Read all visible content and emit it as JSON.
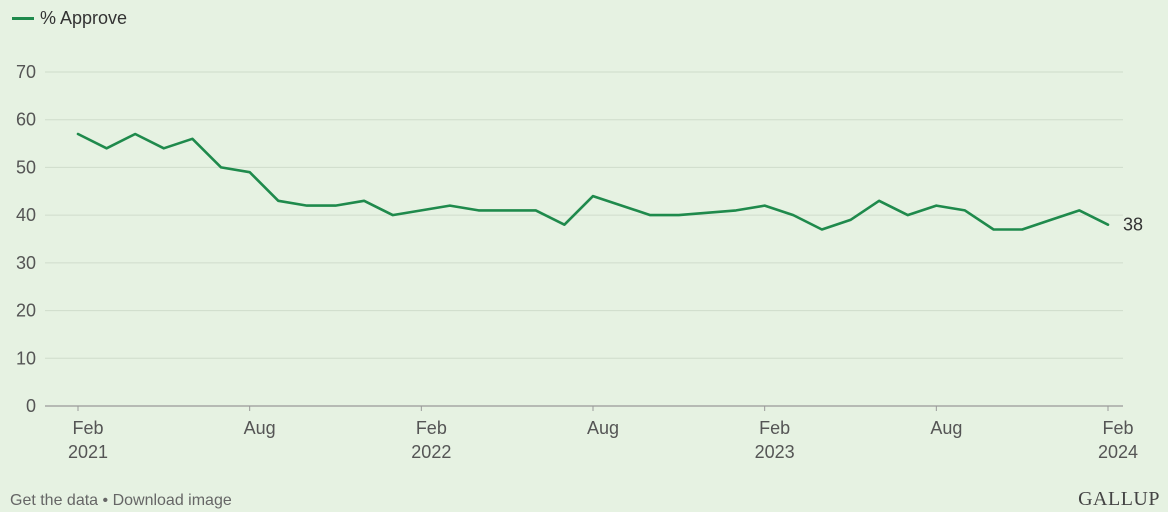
{
  "legend": {
    "label": "% Approve",
    "color": "#1f8a4c"
  },
  "footer": {
    "get_data": "Get the data",
    "separator": " • ",
    "download": "Download image"
  },
  "logo": {
    "text": "GALLUP"
  },
  "chart_data": {
    "type": "line",
    "title": "",
    "xlabel": "",
    "ylabel": "",
    "ylim": [
      0,
      70
    ],
    "yticks": [
      0,
      10,
      20,
      30,
      40,
      50,
      60,
      70
    ],
    "grid": true,
    "legend_position": "top-left",
    "x_ticks": [
      {
        "date": "2021-02",
        "label": [
          "Feb",
          "2021"
        ]
      },
      {
        "date": "2021-08",
        "label": [
          "Aug"
        ]
      },
      {
        "date": "2022-02",
        "label": [
          "Feb",
          "2022"
        ]
      },
      {
        "date": "2022-08",
        "label": [
          "Aug"
        ]
      },
      {
        "date": "2023-02",
        "label": [
          "Feb",
          "2023"
        ]
      },
      {
        "date": "2023-08",
        "label": [
          "Aug"
        ]
      },
      {
        "date": "2024-02",
        "label": [
          "Feb",
          "2024"
        ]
      }
    ],
    "series": [
      {
        "name": "% Approve",
        "color": "#1f8a4c",
        "end_label": "38",
        "points": [
          {
            "date": "2021-02",
            "value": 57
          },
          {
            "date": "2021-03",
            "value": 54
          },
          {
            "date": "2021-04",
            "value": 57
          },
          {
            "date": "2021-05",
            "value": 54
          },
          {
            "date": "2021-06",
            "value": 56
          },
          {
            "date": "2021-07",
            "value": 50
          },
          {
            "date": "2021-08",
            "value": 49
          },
          {
            "date": "2021-09",
            "value": 43
          },
          {
            "date": "2021-10",
            "value": 42
          },
          {
            "date": "2021-11",
            "value": 42
          },
          {
            "date": "2021-12",
            "value": 43
          },
          {
            "date": "2022-01",
            "value": 40
          },
          {
            "date": "2022-02",
            "value": 41
          },
          {
            "date": "2022-03",
            "value": 42
          },
          {
            "date": "2022-04",
            "value": 41
          },
          {
            "date": "2022-05",
            "value": 41
          },
          {
            "date": "2022-06",
            "value": 41
          },
          {
            "date": "2022-07",
            "value": 38
          },
          {
            "date": "2022-08",
            "value": 44
          },
          {
            "date": "2022-10",
            "value": 40
          },
          {
            "date": "2022-11",
            "value": 40
          },
          {
            "date": "2023-01",
            "value": 41
          },
          {
            "date": "2023-02",
            "value": 42
          },
          {
            "date": "2023-03",
            "value": 40
          },
          {
            "date": "2023-04",
            "value": 37
          },
          {
            "date": "2023-05",
            "value": 39
          },
          {
            "date": "2023-06",
            "value": 43
          },
          {
            "date": "2023-07",
            "value": 40
          },
          {
            "date": "2023-08",
            "value": 42
          },
          {
            "date": "2023-09",
            "value": 41
          },
          {
            "date": "2023-10",
            "value": 37
          },
          {
            "date": "2023-11",
            "value": 37
          },
          {
            "date": "2023-12",
            "value": 39
          },
          {
            "date": "2024-01",
            "value": 41
          },
          {
            "date": "2024-02",
            "value": 38
          }
        ]
      }
    ]
  }
}
